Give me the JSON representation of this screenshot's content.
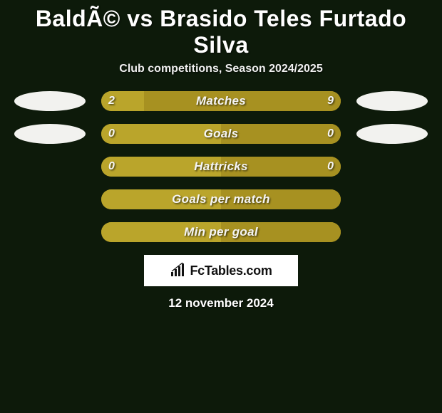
{
  "title": "BaldÃ© vs Brasido Teles Furtado Silva",
  "subtitle": "Club competitions, Season 2024/2025",
  "colors": {
    "background": "#0d1a0a",
    "ellipse_left_top": "#f2f2ef",
    "ellipse_right_top": "#f2f2ef",
    "ellipse_left_mid": "#f2f2ef",
    "ellipse_right_mid": "#f2f2ef",
    "bar_track": "#a79121",
    "bar_left_fill": "#baa52b",
    "bar_right_fill": "#a79121",
    "text": "#ffffff"
  },
  "rows": [
    {
      "label": "Matches",
      "left_value": "2",
      "right_value": "9",
      "left_pct": 18,
      "right_pct": 82,
      "show_ellipses": true,
      "show_values": true
    },
    {
      "label": "Goals",
      "left_value": "0",
      "right_value": "0",
      "left_pct": 50,
      "right_pct": 50,
      "show_ellipses": true,
      "show_values": true
    },
    {
      "label": "Hattricks",
      "left_value": "0",
      "right_value": "0",
      "left_pct": 50,
      "right_pct": 50,
      "show_ellipses": false,
      "show_values": true
    },
    {
      "label": "Goals per match",
      "left_value": "",
      "right_value": "",
      "left_pct": 50,
      "right_pct": 50,
      "show_ellipses": false,
      "show_values": false
    },
    {
      "label": "Min per goal",
      "left_value": "",
      "right_value": "",
      "left_pct": 50,
      "right_pct": 50,
      "show_ellipses": false,
      "show_values": false
    }
  ],
  "brand": "FcTables.com",
  "date": "12 november 2024"
}
